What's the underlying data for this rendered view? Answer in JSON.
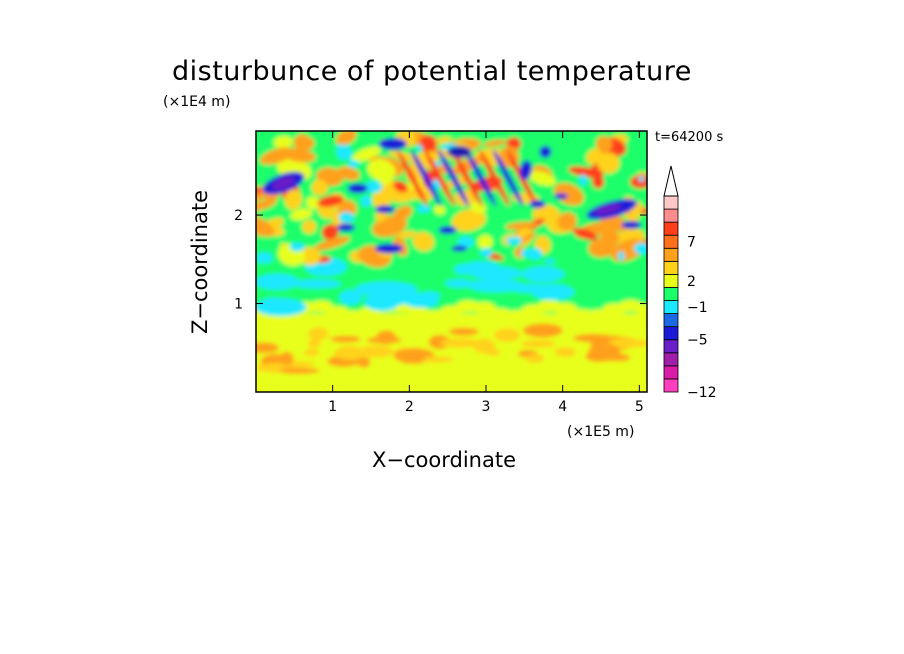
{
  "chart_data": {
    "type": "heatmap",
    "title": "disturbunce of potential temperature",
    "xlabel": "X−coordinate",
    "ylabel": "Z−coordinate",
    "x_unit": "(×1E5 m)",
    "y_unit": "(×1E4 m)",
    "time_label": "t=64200 s",
    "xlim": [
      0,
      5.1
    ],
    "ylim": [
      0,
      2.95
    ],
    "x_ticks": [
      {
        "value": 1,
        "label": "1"
      },
      {
        "value": 2,
        "label": "2"
      },
      {
        "value": 3,
        "label": "3"
      },
      {
        "value": 4,
        "label": "4"
      },
      {
        "value": 5,
        "label": "5"
      }
    ],
    "y_ticks": [
      {
        "value": 1,
        "label": "1"
      },
      {
        "value": 2,
        "label": "2"
      }
    ],
    "colorbar": {
      "levels": [
        {
          "color": "#ff3fbf"
        },
        {
          "color": "#d81ea8"
        },
        {
          "color": "#a01eaa"
        },
        {
          "color": "#6a1ec8"
        },
        {
          "color": "#1a1ad8"
        },
        {
          "color": "#1a6ae8"
        },
        {
          "color": "#1ae8ff"
        },
        {
          "color": "#1aff6a"
        },
        {
          "color": "#e8ff1a"
        },
        {
          "color": "#ffd21a"
        },
        {
          "color": "#ffa01a"
        },
        {
          "color": "#ff701a"
        },
        {
          "color": "#ff3f1a"
        },
        {
          "color": "#ff8c8c"
        },
        {
          "color": "#ffc8c8"
        }
      ],
      "labels": [
        {
          "value": 7,
          "label": "7"
        },
        {
          "value": 2,
          "label": "2"
        },
        {
          "value": -1,
          "label": "−1"
        },
        {
          "value": -5,
          "label": "−5"
        },
        {
          "value": -12,
          "label": "−12"
        }
      ]
    },
    "field_colors": {
      "background": "#1aff6a",
      "yellow": "#e8ff1a",
      "gold": "#ffd21a",
      "orange": "#ffa01a",
      "red": "#ff3f1a",
      "cyan": "#1ae8ff",
      "blue": "#1a1ad8",
      "navy": "#1a1ab0",
      "purple": "#6a1ec8"
    }
  }
}
